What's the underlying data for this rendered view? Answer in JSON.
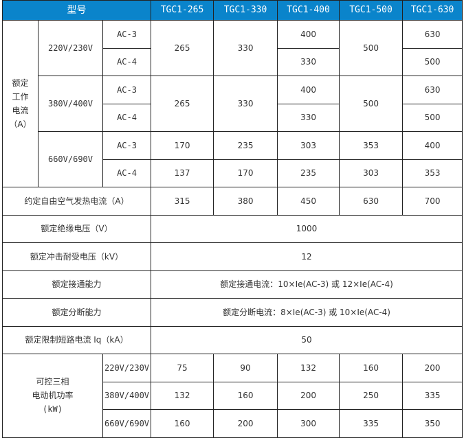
{
  "colors": {
    "header_bg": "#0a84cb",
    "header_text": "#ffffff",
    "border": "#222222"
  },
  "header": {
    "model_label": "型号",
    "models": [
      "TGC1-265",
      "TGC1-330",
      "TGC1-400",
      "TGC1-500",
      "TGC1-630"
    ]
  },
  "rated_current": {
    "label_lines": [
      "额定",
      "工作",
      "电流",
      "（A）"
    ],
    "groups": [
      {
        "voltage": "220V/230V",
        "ac3_label": "AC-3",
        "ac4_label": "AC-4",
        "m265": "265",
        "m330": "330",
        "m400_ac3": "400",
        "m400_ac4": "330",
        "m500": "500",
        "m630_ac3": "630",
        "m630_ac4": "500"
      },
      {
        "voltage": "380V/400V",
        "ac3_label": "AC-3",
        "ac4_label": "AC-4",
        "m265": "265",
        "m330": "330",
        "m400_ac3": "400",
        "m400_ac4": "330",
        "m500": "500",
        "m630_ac3": "630",
        "m630_ac4": "500"
      },
      {
        "voltage": "660V/690V",
        "ac3_label": "AC-3",
        "ac4_label": "AC-4",
        "ac3": [
          "170",
          "235",
          "303",
          "353",
          "400"
        ],
        "ac4": [
          "137",
          "170",
          "235",
          "303",
          "353"
        ]
      }
    ]
  },
  "thermal": {
    "label": "约定自由空气发热电流（A）",
    "values": [
      "315",
      "380",
      "450",
      "630",
      "700"
    ]
  },
  "insulation": {
    "label": "额定绝缘电压（V）",
    "value": "1000"
  },
  "impulse": {
    "label": "额定冲击耐受电压（kV）",
    "value": "12"
  },
  "making": {
    "label": "额定接通能力",
    "value": "额定接通电流：10×Ie(AC-3) 或 12×Ie(AC-4)"
  },
  "breaking": {
    "label": "额定分断能力",
    "value": "额定分断电流：8×Ie(AC-3) 或 10×Ie(AC-4)"
  },
  "short_circuit": {
    "label": "额定限制短路电流 Iq（kA）",
    "value": "50"
  },
  "motor_power": {
    "label_lines": [
      "可控三相",
      "电动机功率",
      "(kW)"
    ],
    "rows": [
      {
        "voltage": "220V/230V",
        "values": [
          "75",
          "90",
          "132",
          "160",
          "200"
        ]
      },
      {
        "voltage": "380V/400V",
        "values": [
          "132",
          "160",
          "200",
          "250",
          "335"
        ]
      },
      {
        "voltage": "660V/690V",
        "values": [
          "160",
          "200",
          "300",
          "335",
          "350"
        ]
      }
    ]
  }
}
